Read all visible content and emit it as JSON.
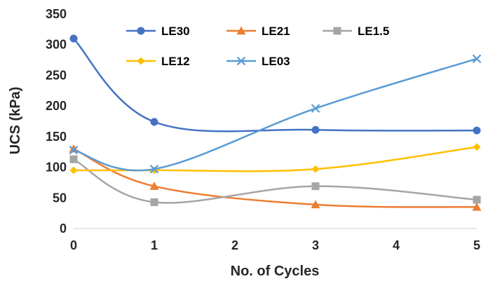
{
  "chart_data": {
    "type": "line",
    "smooth": true,
    "xlabel": "No. of Cycles",
    "ylabel": "UCS (kPa)",
    "xlim": [
      0,
      5
    ],
    "ylim": [
      0,
      350
    ],
    "xticks": [
      0,
      1,
      2,
      3,
      4,
      5
    ],
    "yticks": [
      0,
      50,
      100,
      150,
      200,
      250,
      300,
      350
    ],
    "grid": false,
    "legend_position": "top",
    "series": [
      {
        "name": "LE30",
        "color": "#4472C4",
        "marker": "circle",
        "x": [
          0,
          1,
          3,
          5
        ],
        "y": [
          310,
          174,
          161,
          160
        ]
      },
      {
        "name": "LE21",
        "color": "#ED7D31",
        "marker": "triangle",
        "x": [
          0,
          1,
          3,
          5
        ],
        "y": [
          130,
          69,
          39,
          35
        ]
      },
      {
        "name": "LE1.5",
        "color": "#A5A5A5",
        "marker": "square",
        "x": [
          0,
          1,
          3,
          5
        ],
        "y": [
          113,
          43,
          69,
          47
        ]
      },
      {
        "name": "LE12",
        "color": "#FFC000",
        "marker": "diamond",
        "x": [
          0,
          1,
          3,
          5
        ],
        "y": [
          95,
          95,
          97,
          133
        ]
      },
      {
        "name": "LE03",
        "color": "#5B9BD5",
        "marker": "x",
        "x": [
          0,
          1,
          3,
          5
        ],
        "y": [
          128,
          97,
          196,
          277
        ]
      }
    ]
  }
}
